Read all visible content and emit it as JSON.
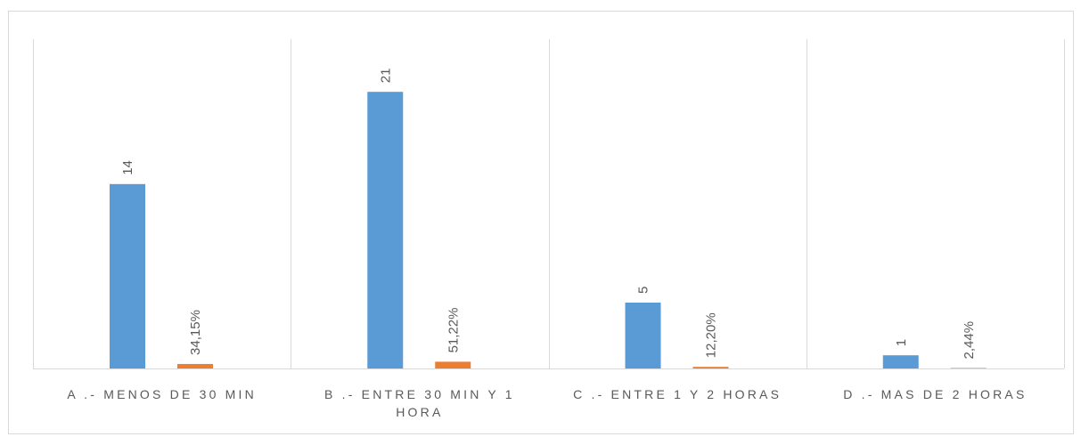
{
  "chart_data": {
    "type": "bar",
    "categories": [
      [
        "A .- MENOS DE 30 MIN"
      ],
      [
        "B .- ENTRE 30 MIN Y 1",
        "HORA"
      ],
      [
        "C .- ENTRE 1 Y 2 HORAS"
      ],
      [
        "D .- MAS DE 2 HORAS"
      ]
    ],
    "series": [
      {
        "values": [
          14,
          21,
          5,
          1
        ],
        "labels": [
          "14",
          "21",
          "5",
          "1"
        ],
        "color": "#5b9bd5"
      },
      {
        "values": [
          0.3415,
          0.5122,
          0.122,
          0.0244
        ],
        "labels": [
          "34,15%",
          "51,22%",
          "12,20%",
          "2,44%"
        ],
        "color": "#ed7d31"
      }
    ],
    "ylim": [
      0,
      25
    ],
    "grid": false,
    "legend": "none"
  }
}
